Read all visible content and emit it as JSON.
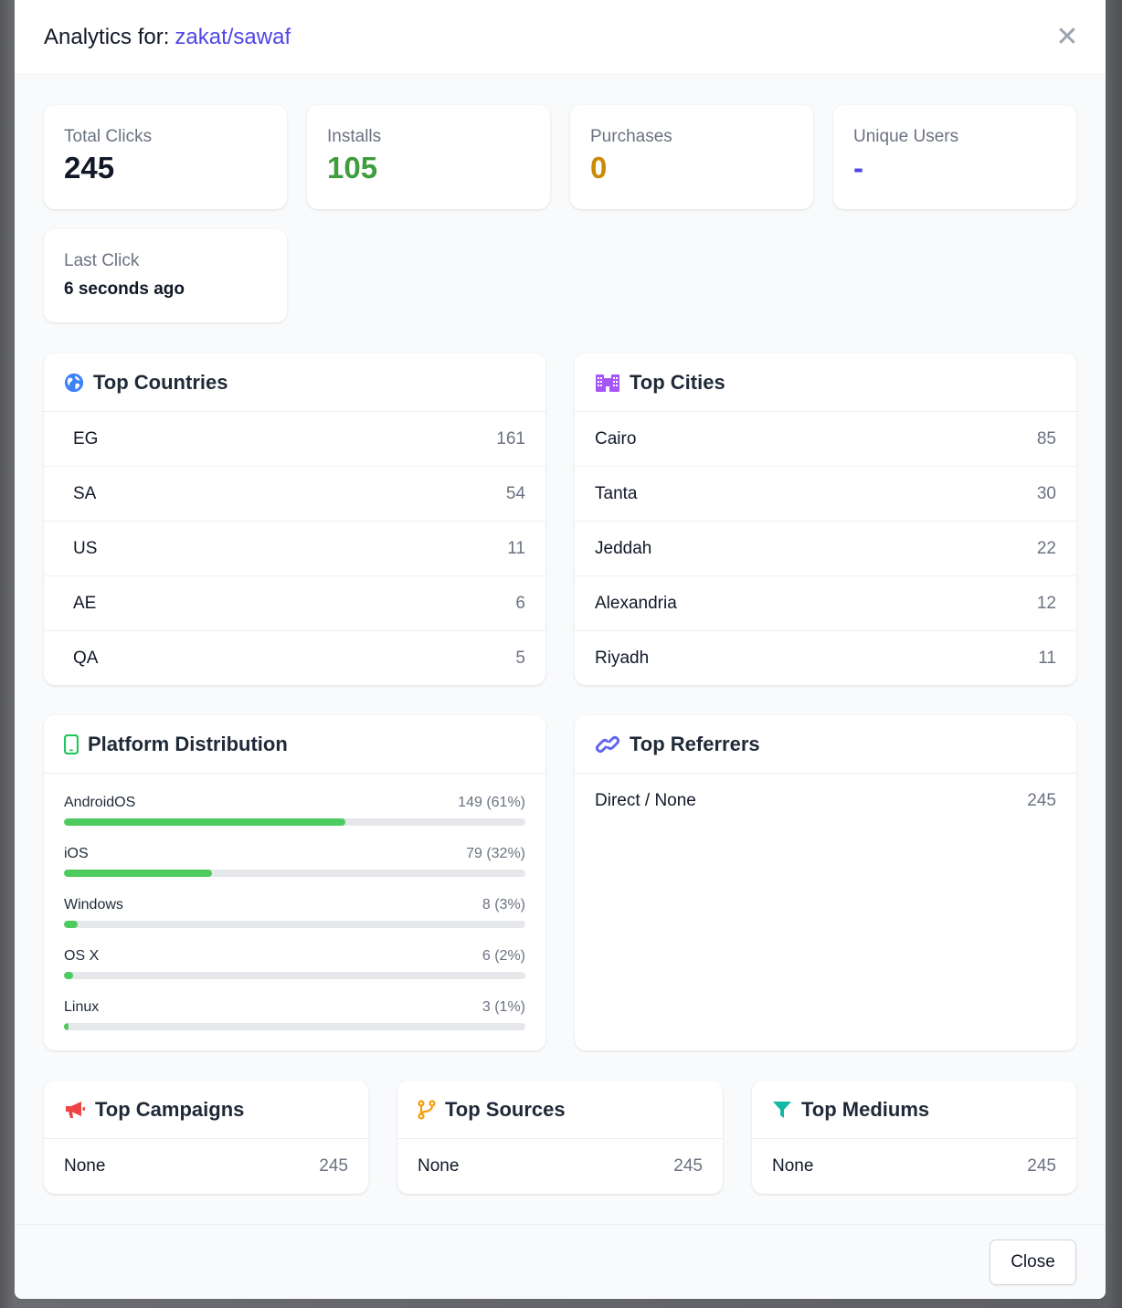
{
  "modal": {
    "title_prefix": "Analytics for:",
    "link_slug": "zakat/sawaf",
    "close_icon_glyph": "✕"
  },
  "stats": {
    "total_clicks": {
      "label": "Total Clicks",
      "value": "245",
      "color": "#111827"
    },
    "installs": {
      "label": "Installs",
      "value": "105",
      "color": "#3f9d3f"
    },
    "purchases": {
      "label": "Purchases",
      "value": "0",
      "color": "#ca8a04"
    },
    "unique_users": {
      "label": "Unique Users",
      "value": "-",
      "color": "#4f46e5"
    },
    "last_click": {
      "label": "Last Click",
      "value": "6 seconds ago"
    }
  },
  "countries": {
    "title": "Top Countries",
    "icon": "globe-icon",
    "icon_color": "#3b82f6",
    "items": [
      {
        "name": "EG",
        "count": "161"
      },
      {
        "name": "SA",
        "count": "54"
      },
      {
        "name": "US",
        "count": "11"
      },
      {
        "name": "AE",
        "count": "6"
      },
      {
        "name": "QA",
        "count": "5"
      }
    ]
  },
  "cities": {
    "title": "Top Cities",
    "icon": "city-icon",
    "icon_color": "#a855f7",
    "items": [
      {
        "name": "Cairo",
        "count": "85"
      },
      {
        "name": "Tanta",
        "count": "30"
      },
      {
        "name": "Jeddah",
        "count": "22"
      },
      {
        "name": "Alexandria",
        "count": "12"
      },
      {
        "name": "Riyadh",
        "count": "11"
      }
    ]
  },
  "platforms": {
    "title": "Platform Distribution",
    "icon": "mobile-phone-icon",
    "icon_color": "#22c55e",
    "bar_color": "#4ecb5e",
    "items": [
      {
        "name": "AndroidOS",
        "label": "149 (61%)",
        "fraction": 0.61
      },
      {
        "name": "iOS",
        "label": "79 (32%)",
        "fraction": 0.32
      },
      {
        "name": "Windows",
        "label": "8 (3%)",
        "fraction": 0.03
      },
      {
        "name": "OS X",
        "label": "6 (2%)",
        "fraction": 0.02
      },
      {
        "name": "Linux",
        "label": "3 (1%)",
        "fraction": 0.01
      }
    ]
  },
  "referrers": {
    "title": "Top Referrers",
    "icon": "link-icon",
    "icon_color": "#6366f1",
    "items": [
      {
        "name": "Direct / None",
        "count": "245"
      }
    ]
  },
  "campaigns": {
    "title": "Top Campaigns",
    "icon": "megaphone-icon",
    "icon_color": "#ef4444",
    "items": [
      {
        "name": "None",
        "count": "245"
      }
    ]
  },
  "sources": {
    "title": "Top Sources",
    "icon": "code-branch-icon",
    "icon_color": "#f59e0b",
    "items": [
      {
        "name": "None",
        "count": "245"
      }
    ]
  },
  "mediums": {
    "title": "Top Mediums",
    "icon": "filter-icon",
    "icon_color": "#14b8a6",
    "items": [
      {
        "name": "None",
        "count": "245"
      }
    ]
  },
  "footer": {
    "close_label": "Close"
  }
}
